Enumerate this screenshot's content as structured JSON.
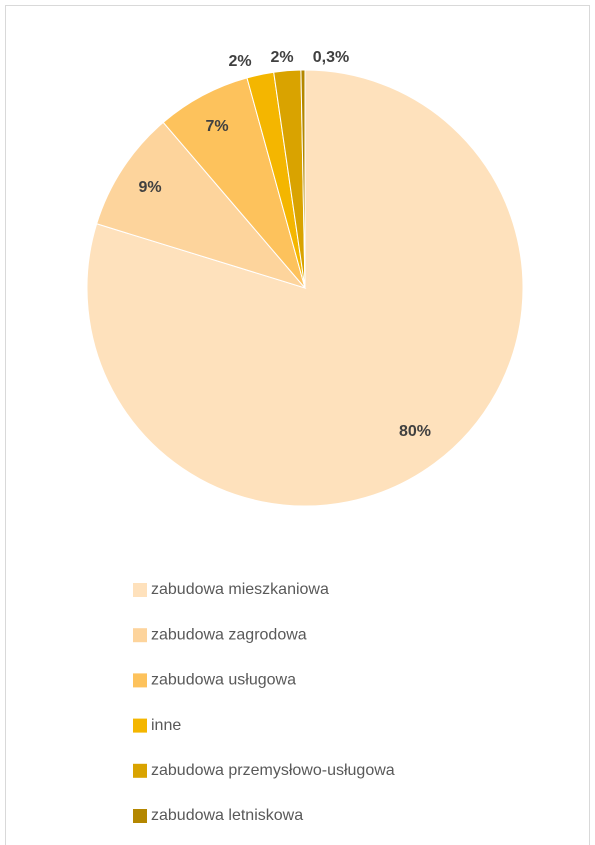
{
  "chart_data": {
    "type": "pie",
    "categories": [
      "zabudowa mieszkaniowa",
      "zabudowa zagrodowa",
      "zabudowa usługowa",
      "inne",
      "zabudowa przemysłowo-usługowa",
      "zabudowa letniskowa"
    ],
    "values": [
      80,
      9,
      7,
      2,
      2,
      0.3
    ],
    "value_labels": [
      "80%",
      "9%",
      "7%",
      "2%",
      "2%",
      "0,3%"
    ],
    "colors": [
      "#fee1bc",
      "#fdd49c",
      "#fdc25c",
      "#f4b600",
      "#d9a300",
      "#b48700"
    ],
    "legend": "bottom"
  }
}
